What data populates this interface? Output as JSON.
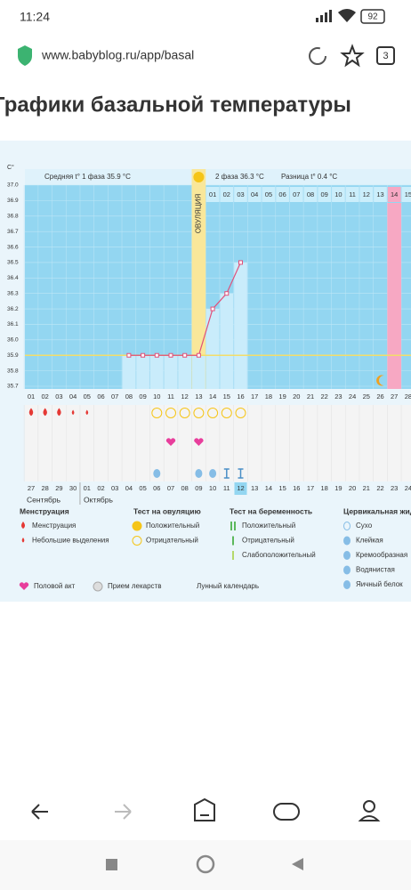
{
  "status_bar": {
    "time": "11:24",
    "battery": "92"
  },
  "browser": {
    "url": "www.babyblog.ru/app/basal",
    "tabs": "3"
  },
  "page": {
    "title": "Графики базальной температуры"
  },
  "chart_data": {
    "type": "line",
    "y_unit": "C°",
    "phase1_label": "Средняя t° 1 фаза 35.9 °C",
    "phase2_label": "2 фаза 36.3 °C",
    "difference_label": "Разница t° 0.4 °C",
    "ovulation_label": "ОВУЛЯЦИЯ",
    "categories": [
      "01",
      "02",
      "03",
      "04",
      "05",
      "06",
      "07",
      "08",
      "09",
      "10",
      "11",
      "12",
      "13",
      "14",
      "15",
      "16",
      "17",
      "18",
      "19",
      "20",
      "21",
      "22",
      "23",
      "24",
      "25",
      "26",
      "27",
      "28"
    ],
    "values": [
      null,
      null,
      null,
      null,
      null,
      null,
      null,
      35.9,
      35.9,
      35.9,
      35.9,
      35.9,
      35.9,
      36.2,
      36.3,
      36.5,
      null,
      null,
      null,
      null,
      null,
      null,
      null,
      null,
      null,
      null,
      null,
      null
    ],
    "color": "#e0507a",
    "coverline": 35.9,
    "ylim": [
      35.7,
      37.0
    ],
    "yticks": [
      35.7,
      35.8,
      35.9,
      {
        "value": 36.0,
        "label": "36.0"
      },
      36.1,
      36.2,
      36.3,
      36.4,
      36.5,
      36.6,
      36.7,
      36.8,
      36.9,
      {
        "value": 37.0,
        "label": "37.0"
      }
    ],
    "phase2_days": [
      "01",
      "02",
      "03",
      "04",
      "05",
      "06",
      "07",
      "08",
      "09",
      "10",
      "11",
      "12",
      "13",
      "14",
      "15"
    ],
    "dates": [
      "27",
      "28",
      "29",
      "30",
      "01",
      "02",
      "03",
      "04",
      "05",
      "06",
      "07",
      "08",
      "09",
      "10",
      "11",
      "12",
      "13",
      "14",
      "15",
      "16",
      "17",
      "18",
      "19",
      "20",
      "21",
      "22",
      "23",
      "24"
    ],
    "months": [
      "Сентябрь",
      "Октябрь"
    ],
    "legend": [
      {
        "title": "Менструация",
        "items": [
          "Менструация",
          "Небольшие выделения"
        ]
      },
      {
        "title": "Тест на овуляцию",
        "items": [
          "Положительный",
          "Отрицательный"
        ]
      },
      {
        "title": "Тест на беременность",
        "items": [
          "Положительный",
          "Отрицательный",
          "Слабоположительный"
        ]
      },
      {
        "title": "Цервикальная жидкость",
        "items": [
          "Сухо",
          "Клейкая",
          "Кремообразная",
          "Водянистая",
          "Яичный белок"
        ]
      }
    ],
    "legend_other": [
      "Половой акт",
      "Прием лекарств",
      "Лунный календарь"
    ]
  }
}
